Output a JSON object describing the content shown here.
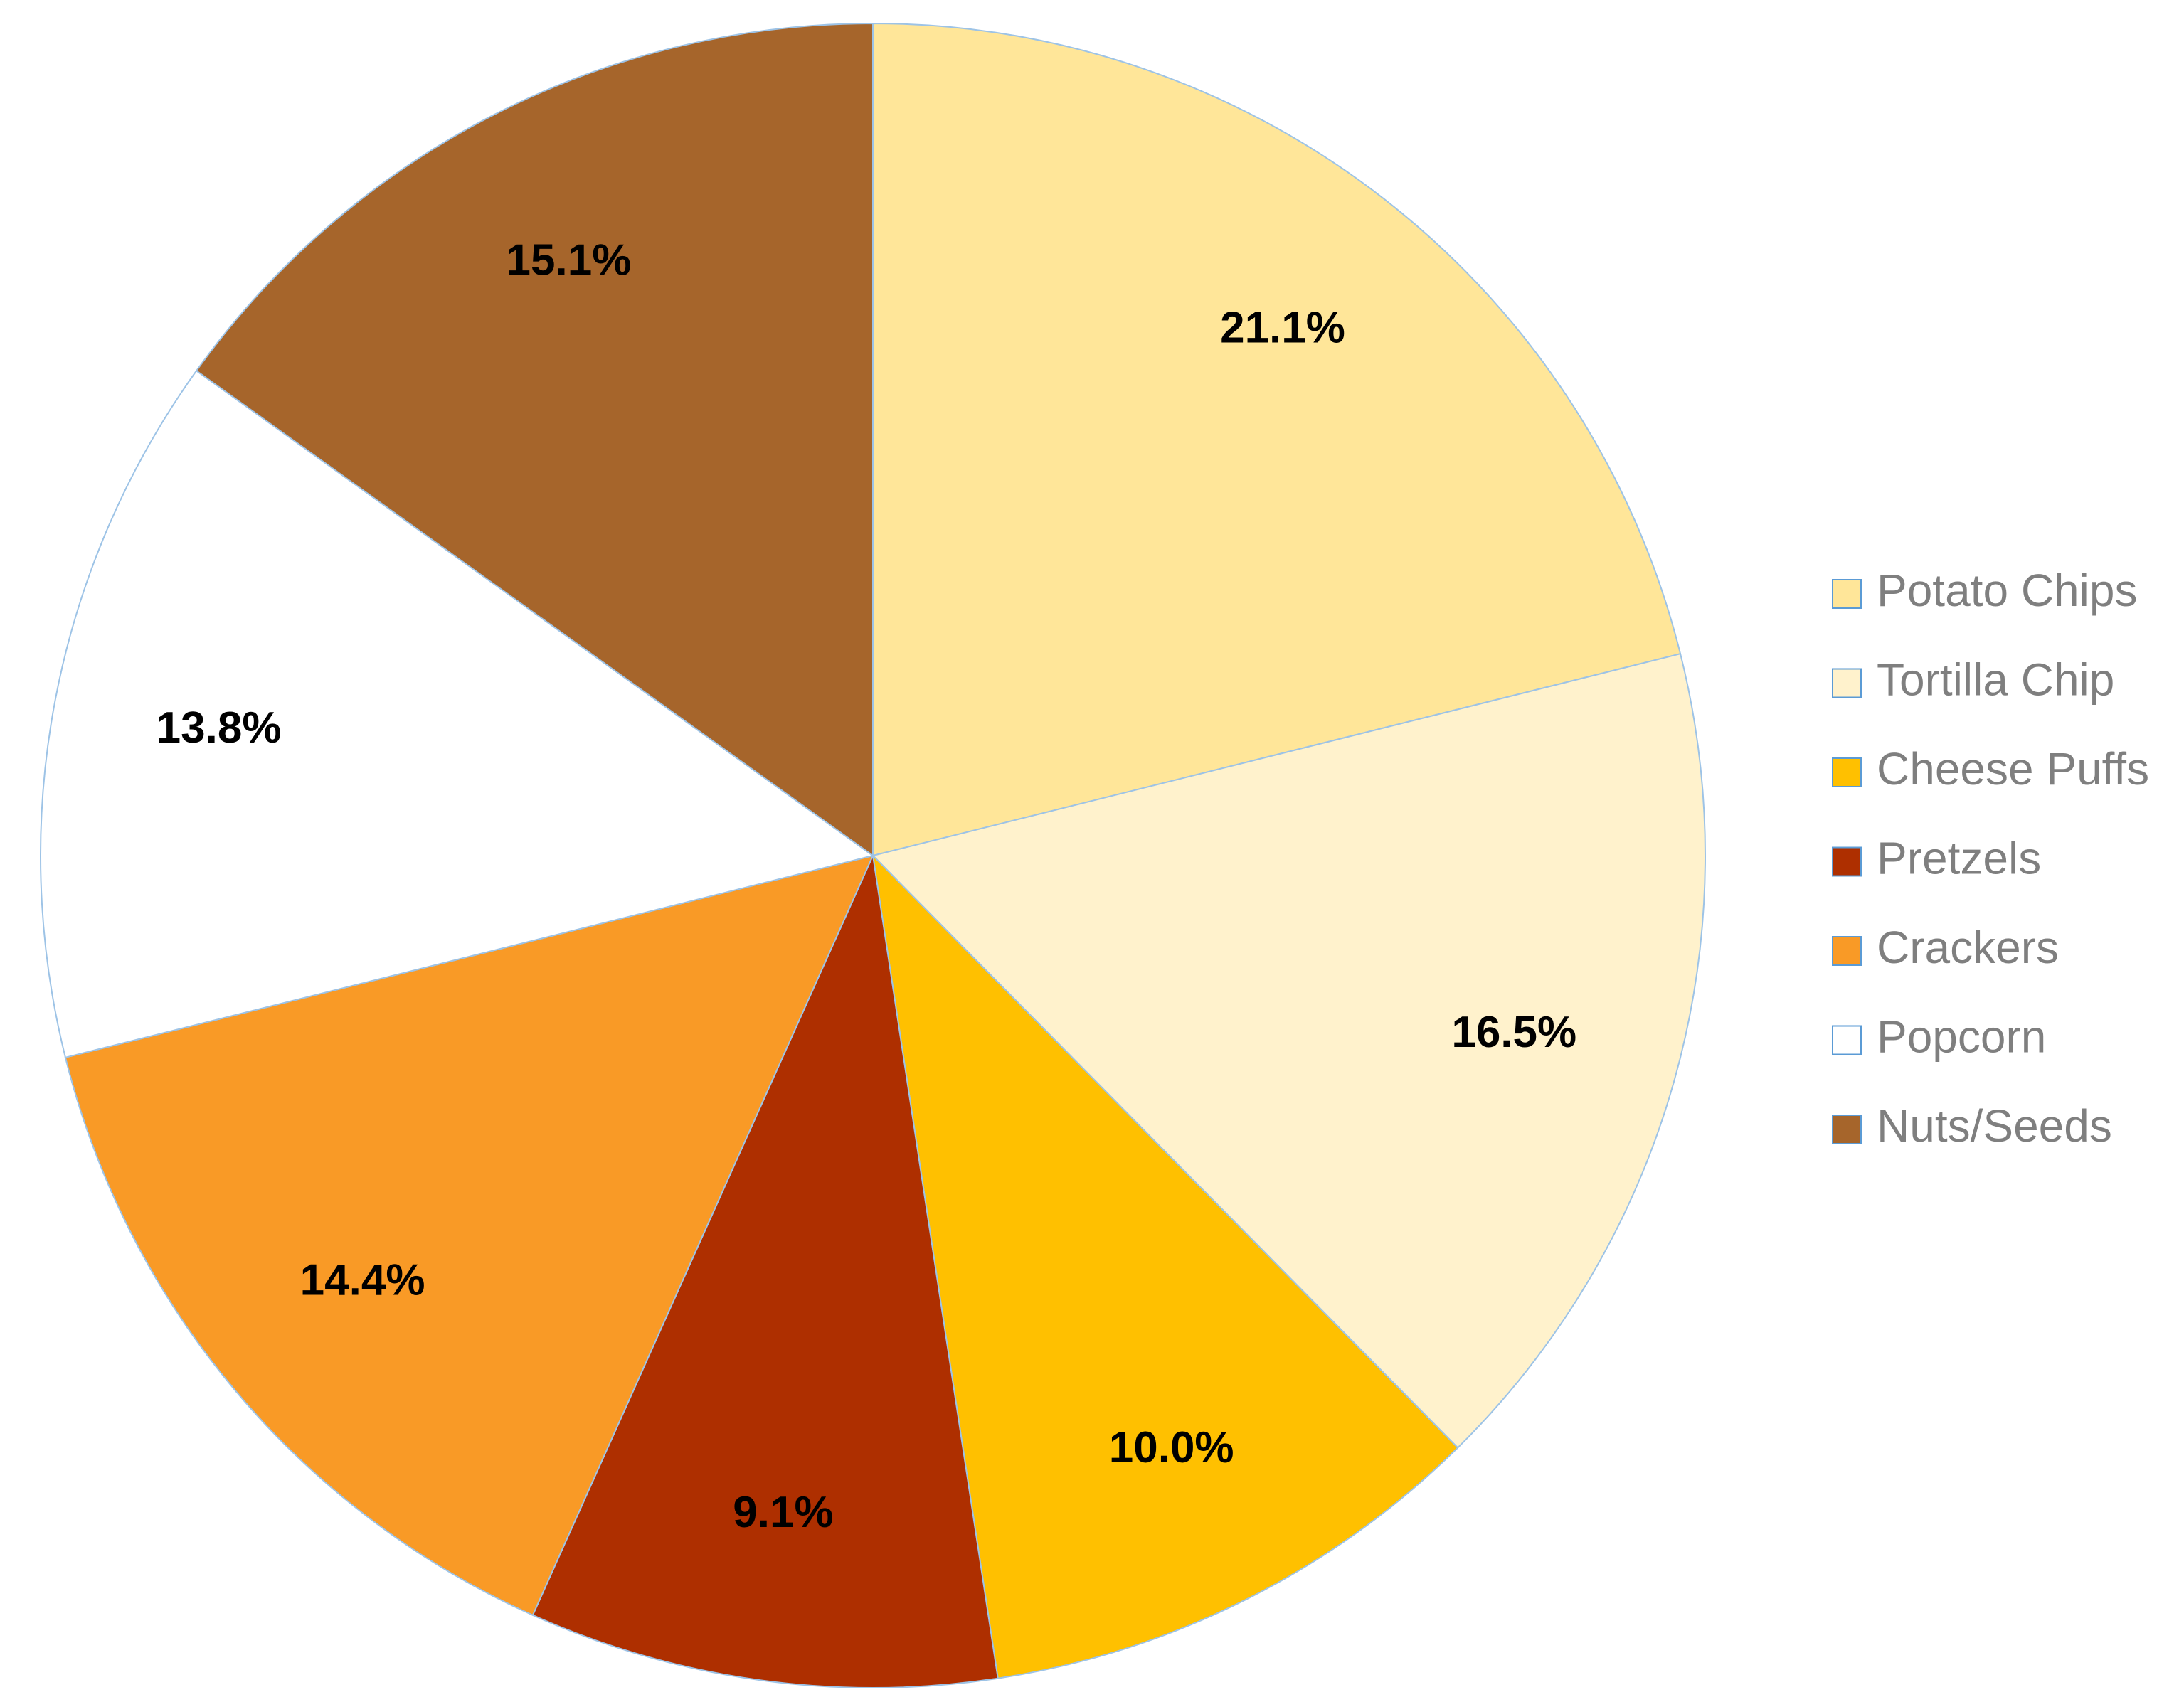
{
  "chart_data": {
    "type": "pie",
    "categories": [
      "Potato Chips",
      "Tortilla Chip",
      "Cheese Puffs",
      "Pretzels",
      "Crackers",
      "Popcorn",
      "Nuts/Seeds"
    ],
    "values": [
      21.1,
      16.5,
      10.0,
      9.1,
      14.4,
      13.8,
      15.1
    ],
    "value_labels": [
      "21.1%",
      "16.5%",
      "10.0%",
      "9.1%",
      "14.4%",
      "13.8%",
      "15.1%"
    ],
    "colors": [
      "#FFE699",
      "#FFF2CC",
      "#FFC000",
      "#AE2F00",
      "#F99A26",
      "#FFFFFF",
      "#A6652B"
    ],
    "legend": "right"
  }
}
